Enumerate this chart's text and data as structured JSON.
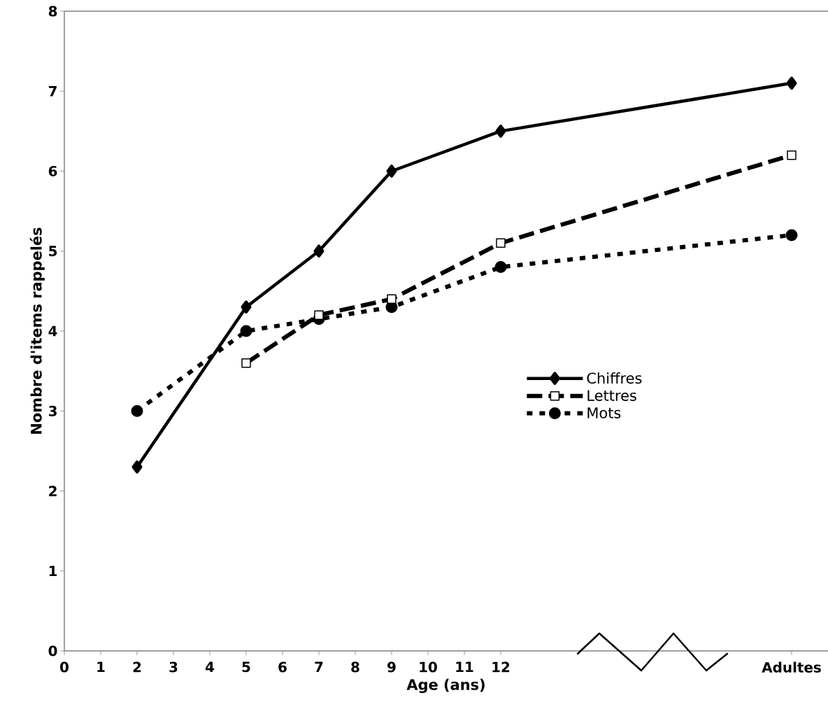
{
  "chart_data": {
    "type": "line",
    "xlabel": "Age (ans)",
    "ylabel": "Nombre d'items  rappelés",
    "xlim": [
      0,
      21
    ],
    "ylim": [
      0,
      8
    ],
    "xticks": [
      0,
      1,
      2,
      3,
      4,
      5,
      6,
      7,
      8,
      9,
      10,
      11,
      12,
      {
        "value": 20,
        "label": "Adultes"
      }
    ],
    "yticks": [
      0,
      1,
      2,
      3,
      4,
      5,
      6,
      7,
      8
    ],
    "legend": "right",
    "grid": false,
    "series": [
      {
        "name": "Chiffres",
        "color": "#000000",
        "marker": "diamond",
        "line_style": "solid",
        "x": [
          2,
          5,
          7,
          9,
          12,
          20
        ],
        "values": [
          2.3,
          4.3,
          5.0,
          6.0,
          6.5,
          7.1
        ]
      },
      {
        "name": "Lettres",
        "color": "#000000",
        "marker": "square",
        "line_style": "dashed",
        "x": [
          5,
          7,
          9,
          12,
          20
        ],
        "values": [
          3.6,
          4.2,
          4.4,
          5.1,
          6.2
        ]
      },
      {
        "name": "Mots",
        "color": "#000000",
        "marker": "circle",
        "line_style": "dotted",
        "x": [
          2,
          5,
          7,
          9,
          12,
          20
        ],
        "values": [
          3.0,
          4.0,
          4.15,
          4.3,
          4.8,
          5.2
        ]
      }
    ]
  }
}
